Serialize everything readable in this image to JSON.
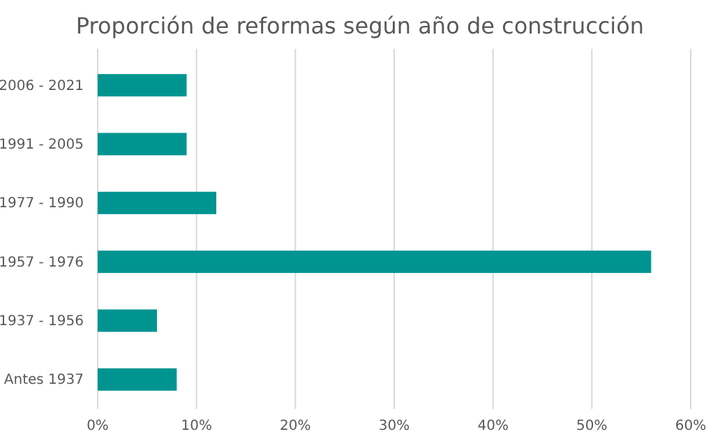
{
  "chart_data": {
    "type": "bar",
    "orientation": "horizontal",
    "title": "Proporción de reformas según año de construcción",
    "categories": [
      "2006 - 2021",
      "1991 - 2005",
      "1977 - 1990",
      "1957 - 1976",
      "1937 - 1956",
      "Antes 1937"
    ],
    "values": [
      9,
      9,
      12,
      56,
      6,
      8
    ],
    "color": "#009490",
    "xlim": [
      0,
      60
    ],
    "xticks": [
      {
        "value": 0,
        "label": "0%"
      },
      {
        "value": 10,
        "label": "10%"
      },
      {
        "value": 20,
        "label": "20%"
      },
      {
        "value": 30,
        "label": "30%"
      },
      {
        "value": 40,
        "label": "40%"
      },
      {
        "value": 50,
        "label": "50%"
      },
      {
        "value": 60,
        "label": "60%"
      }
    ],
    "grid": "x"
  }
}
